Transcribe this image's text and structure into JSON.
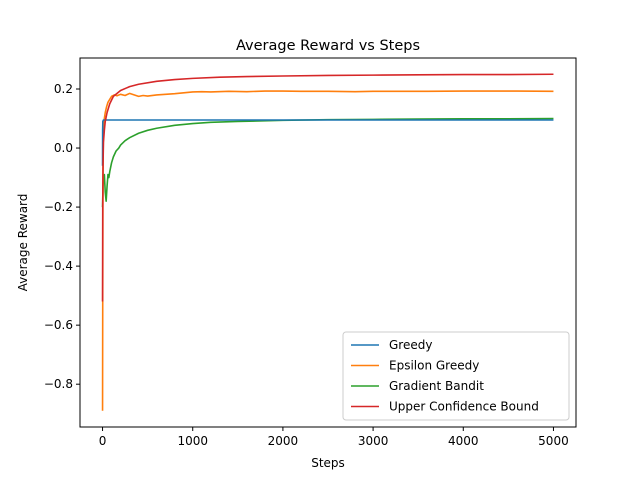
{
  "chart_data": {
    "type": "line",
    "title": "Average Reward vs Steps",
    "xlabel": "Steps",
    "ylabel": "Average Reward",
    "xlim": [
      -250,
      5250
    ],
    "ylim": [
      -0.945,
      0.305
    ],
    "xticks": [
      0,
      1000,
      2000,
      3000,
      4000,
      5000
    ],
    "xtick_labels": [
      "0",
      "1000",
      "2000",
      "3000",
      "4000",
      "5000"
    ],
    "yticks": [
      -0.8,
      -0.6,
      -0.4,
      -0.2,
      0.0,
      0.2
    ],
    "ytick_labels": [
      "−0.8",
      "−0.6",
      "−0.4",
      "−0.2",
      "0.0",
      "0.2"
    ],
    "grid": false,
    "legend_position": "lower-right",
    "series": [
      {
        "name": "Greedy",
        "color": "#1f77b4",
        "x": [
          0,
          1,
          3,
          10,
          50,
          200,
          1000,
          2000,
          3000,
          4000,
          5000
        ],
        "y": [
          -0.06,
          0.06,
          0.09,
          0.095,
          0.095,
          0.095,
          0.095,
          0.095,
          0.095,
          0.095,
          0.095
        ]
      },
      {
        "name": "Epsilon Greedy",
        "color": "#ff7f0e",
        "x": [
          0,
          2,
          5,
          8,
          12,
          20,
          30,
          45,
          60,
          80,
          100,
          130,
          160,
          200,
          250,
          300,
          350,
          400,
          450,
          500,
          600,
          700,
          800,
          900,
          1000,
          1100,
          1200,
          1400,
          1600,
          1800,
          2000,
          2200,
          2500,
          2800,
          3000,
          3300,
          3600,
          4000,
          4300,
          4600,
          5000
        ],
        "y": [
          -0.89,
          -0.5,
          -0.1,
          0.02,
          0.07,
          0.1,
          0.12,
          0.14,
          0.155,
          0.165,
          0.175,
          0.18,
          0.177,
          0.182,
          0.178,
          0.185,
          0.18,
          0.175,
          0.178,
          0.176,
          0.18,
          0.182,
          0.184,
          0.187,
          0.19,
          0.191,
          0.19,
          0.192,
          0.191,
          0.193,
          0.193,
          0.192,
          0.192,
          0.191,
          0.192,
          0.192,
          0.192,
          0.193,
          0.193,
          0.193,
          0.192
        ]
      },
      {
        "name": "Gradient Bandit",
        "color": "#2ca02c",
        "x": [
          0,
          5,
          10,
          20,
          30,
          40,
          50,
          60,
          70,
          80,
          100,
          120,
          150,
          180,
          200,
          250,
          300,
          400,
          500,
          600,
          800,
          1000,
          1200,
          1500,
          2000,
          2500,
          3000,
          3500,
          4000,
          4500,
          5000
        ],
        "y": [
          -0.2,
          -0.13,
          -0.1,
          -0.09,
          -0.15,
          -0.18,
          -0.13,
          -0.09,
          -0.1,
          -0.08,
          -0.05,
          -0.03,
          -0.01,
          0.0,
          0.01,
          0.025,
          0.035,
          0.05,
          0.06,
          0.067,
          0.077,
          0.083,
          0.087,
          0.09,
          0.094,
          0.096,
          0.097,
          0.098,
          0.099,
          0.099,
          0.1
        ]
      },
      {
        "name": "Upper Confidence Bound",
        "color": "#d62728",
        "x": [
          0,
          2,
          5,
          10,
          20,
          30,
          50,
          80,
          120,
          200,
          300,
          400,
          600,
          800,
          1000,
          1300,
          1600,
          2000,
          2500,
          3000,
          3500,
          4000,
          4500,
          5000
        ],
        "y": [
          -0.52,
          -0.2,
          -0.06,
          0.02,
          0.06,
          0.09,
          0.12,
          0.15,
          0.175,
          0.195,
          0.208,
          0.216,
          0.226,
          0.232,
          0.236,
          0.24,
          0.242,
          0.244,
          0.246,
          0.247,
          0.248,
          0.249,
          0.249,
          0.25
        ]
      }
    ]
  }
}
